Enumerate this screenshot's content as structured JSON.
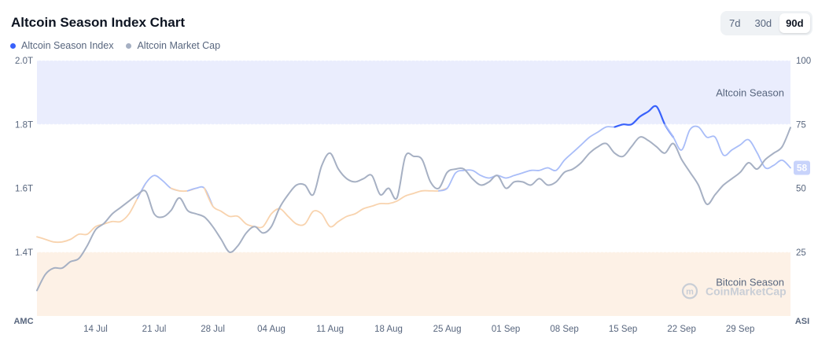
{
  "header": {
    "title": "Altcoin Season Index Chart",
    "range_tabs": [
      "7d",
      "30d",
      "90d"
    ],
    "active_range": "90d"
  },
  "legend": [
    {
      "label": "Altcoin Season Index",
      "color": "#3861fb"
    },
    {
      "label": "Altcoin Market Cap",
      "color": "#a6b0c3"
    }
  ],
  "colors": {
    "altcoin_zone": "#eaedfd",
    "bitcoin_zone": "#fdf1e6",
    "index_line": "#a9bdf8",
    "index_line_in_season": "#3861fb",
    "index_line_low": "#f8d3ae",
    "market_cap_line": "#a6b0c3",
    "badge": "#c8d3fb"
  },
  "watermark": "CoinMarketCap",
  "chart_data": {
    "type": "line",
    "x": [
      "07 Jul",
      "08 Jul",
      "09 Jul",
      "10 Jul",
      "11 Jul",
      "12 Jul",
      "13 Jul",
      "14 Jul",
      "15 Jul",
      "16 Jul",
      "17 Jul",
      "18 Jul",
      "19 Jul",
      "20 Jul",
      "21 Jul",
      "22 Jul",
      "23 Jul",
      "24 Jul",
      "25 Jul",
      "26 Jul",
      "27 Jul",
      "28 Jul",
      "29 Jul",
      "30 Jul",
      "31 Jul",
      "01 Aug",
      "02 Aug",
      "03 Aug",
      "04 Aug",
      "05 Aug",
      "06 Aug",
      "07 Aug",
      "08 Aug",
      "09 Aug",
      "10 Aug",
      "11 Aug",
      "12 Aug",
      "13 Aug",
      "14 Aug",
      "15 Aug",
      "16 Aug",
      "17 Aug",
      "18 Aug",
      "19 Aug",
      "20 Aug",
      "21 Aug",
      "22 Aug",
      "23 Aug",
      "24 Aug",
      "25 Aug",
      "26 Aug",
      "27 Aug",
      "28 Aug",
      "29 Aug",
      "30 Aug",
      "31 Aug",
      "01 Sep",
      "02 Sep",
      "03 Sep",
      "04 Sep",
      "05 Sep",
      "06 Sep",
      "07 Sep",
      "08 Sep",
      "09 Sep",
      "10 Sep",
      "11 Sep",
      "12 Sep",
      "13 Sep",
      "14 Sep",
      "15 Sep",
      "16 Sep",
      "17 Sep",
      "18 Sep",
      "19 Sep",
      "20 Sep",
      "21 Sep",
      "22 Sep",
      "23 Sep",
      "24 Sep",
      "25 Sep",
      "26 Sep",
      "27 Sep",
      "28 Sep",
      "29 Sep",
      "30 Sep",
      "01 Oct",
      "02 Oct",
      "03 Oct",
      "04 Oct",
      "05 Oct"
    ],
    "x_tick_labels": [
      "14 Jul",
      "21 Jul",
      "28 Jul",
      "04 Aug",
      "11 Aug",
      "18 Aug",
      "25 Aug",
      "01 Sep",
      "08 Sep",
      "15 Sep",
      "22 Sep",
      "29 Sep"
    ],
    "series": [
      {
        "name": "Altcoin Season Index",
        "axis": "right",
        "values": [
          31,
          30,
          29,
          29,
          30,
          32,
          32,
          35,
          36,
          37,
          37,
          40,
          46,
          52,
          55,
          53,
          50,
          49,
          49,
          50,
          50,
          43,
          41,
          39,
          39,
          36,
          35,
          35,
          40,
          42,
          39,
          36,
          36,
          41,
          40,
          35,
          37,
          39,
          40,
          42,
          43,
          44,
          44,
          45,
          47,
          48,
          49,
          49,
          49,
          50,
          56,
          57,
          57,
          55,
          54,
          55,
          54,
          55,
          56,
          57,
          57,
          58,
          57,
          61,
          64,
          67,
          70,
          72,
          74,
          74,
          75,
          75,
          78,
          80,
          82,
          75,
          70,
          65,
          73,
          74,
          70,
          70,
          63,
          65,
          67,
          69,
          64,
          58,
          59,
          61,
          58
        ]
      },
      {
        "name": "Altcoin Market Cap",
        "axis": "left",
        "values": [
          1.28,
          1.33,
          1.35,
          1.35,
          1.37,
          1.38,
          1.42,
          1.47,
          1.49,
          1.52,
          1.54,
          1.56,
          1.58,
          1.59,
          1.52,
          1.51,
          1.53,
          1.57,
          1.53,
          1.52,
          1.51,
          1.48,
          1.44,
          1.4,
          1.42,
          1.46,
          1.48,
          1.46,
          1.48,
          1.54,
          1.58,
          1.61,
          1.61,
          1.58,
          1.67,
          1.71,
          1.66,
          1.63,
          1.62,
          1.63,
          1.64,
          1.58,
          1.6,
          1.57,
          1.7,
          1.7,
          1.69,
          1.62,
          1.6,
          1.65,
          1.66,
          1.66,
          1.63,
          1.61,
          1.62,
          1.64,
          1.6,
          1.62,
          1.62,
          1.61,
          1.63,
          1.61,
          1.62,
          1.65,
          1.66,
          1.68,
          1.71,
          1.73,
          1.74,
          1.71,
          1.7,
          1.73,
          1.76,
          1.75,
          1.73,
          1.71,
          1.74,
          1.69,
          1.65,
          1.61,
          1.55,
          1.58,
          1.61,
          1.63,
          1.65,
          1.68,
          1.66,
          1.69,
          1.71,
          1.73,
          1.79
        ]
      }
    ],
    "y_left_ticks": [
      "1.4T",
      "1.6T",
      "1.8T",
      "2.0T"
    ],
    "y_left_ylim": [
      1.2,
      2.0
    ],
    "y_right_ticks": [
      "25",
      "50",
      "75",
      "100"
    ],
    "y_right_ylim": [
      0,
      100
    ],
    "left_axis_label": "AMC",
    "right_axis_label": "ASI",
    "zones": [
      {
        "label": "Altcoin Season",
        "from": 75,
        "to": 100
      },
      {
        "label": "Bitcoin Season",
        "from": 0,
        "to": 25
      }
    ],
    "current_value": "58"
  }
}
